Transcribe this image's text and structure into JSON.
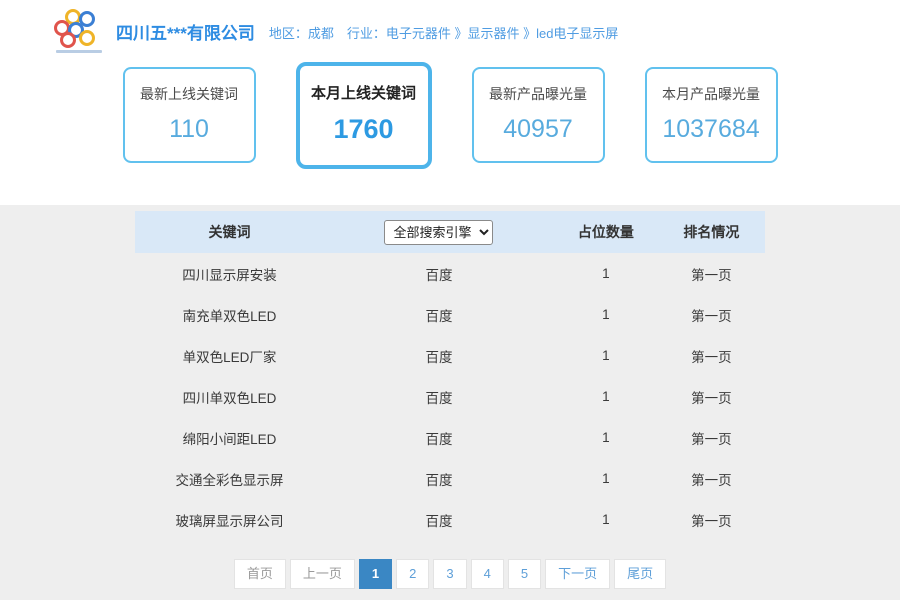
{
  "header": {
    "company_name": "四川五***有限公司",
    "breadcrumb": "地区：成都　行业：电子元器件 》显示器件 》led电子显示屏"
  },
  "stat_cards": [
    {
      "label": "最新上线关键词",
      "value": "110",
      "active": false
    },
    {
      "label": "本月上线关键词",
      "value": "1760",
      "active": true
    },
    {
      "label": "最新产品曝光量",
      "value": "40957",
      "active": false
    },
    {
      "label": "本月产品曝光量",
      "value": "1037684",
      "active": false
    }
  ],
  "table": {
    "columns": {
      "keyword": "关键词",
      "count": "占位数量",
      "rank": "排名情况"
    },
    "engine_filter": {
      "selected": "全部搜索引擎"
    },
    "rows": [
      {
        "keyword": "四川显示屏安装",
        "engine": "百度",
        "count": "1",
        "rank": "第一页"
      },
      {
        "keyword": "南充单双色LED",
        "engine": "百度",
        "count": "1",
        "rank": "第一页"
      },
      {
        "keyword": "单双色LED厂家",
        "engine": "百度",
        "count": "1",
        "rank": "第一页"
      },
      {
        "keyword": "四川单双色LED",
        "engine": "百度",
        "count": "1",
        "rank": "第一页"
      },
      {
        "keyword": "绵阳小间距LED",
        "engine": "百度",
        "count": "1",
        "rank": "第一页"
      },
      {
        "keyword": "交通全彩色显示屏",
        "engine": "百度",
        "count": "1",
        "rank": "第一页"
      },
      {
        "keyword": "玻璃屏显示屏公司",
        "engine": "百度",
        "count": "1",
        "rank": "第一页"
      }
    ]
  },
  "pagination": {
    "current_page": "1",
    "items": [
      {
        "label": "首页",
        "state": "muted"
      },
      {
        "label": "上一页",
        "state": "muted"
      },
      {
        "label": "1",
        "state": "active"
      },
      {
        "label": "2",
        "state": "link"
      },
      {
        "label": "3",
        "state": "link"
      },
      {
        "label": "4",
        "state": "link"
      },
      {
        "label": "5",
        "state": "link"
      },
      {
        "label": "下一页",
        "state": "link"
      },
      {
        "label": "尾页",
        "state": "link"
      }
    ]
  },
  "colors": {
    "accent_blue": "#2e8ce2",
    "breadcrumb_blue": "#4f9ce2",
    "card_border": "#61c1ee",
    "card_border_active": "#4db4ea",
    "value_blue": "#58abde",
    "value_blue_active": "#2d9ae2",
    "band_bg": "#d9e8f7",
    "active_page_bg": "#3a87c4",
    "page_link": "#5e9fd8",
    "logo_red": "#e0544c",
    "logo_blue": "#3b7fd4",
    "logo_yellow": "#efb428",
    "lower_bg": "#eeeeee"
  }
}
